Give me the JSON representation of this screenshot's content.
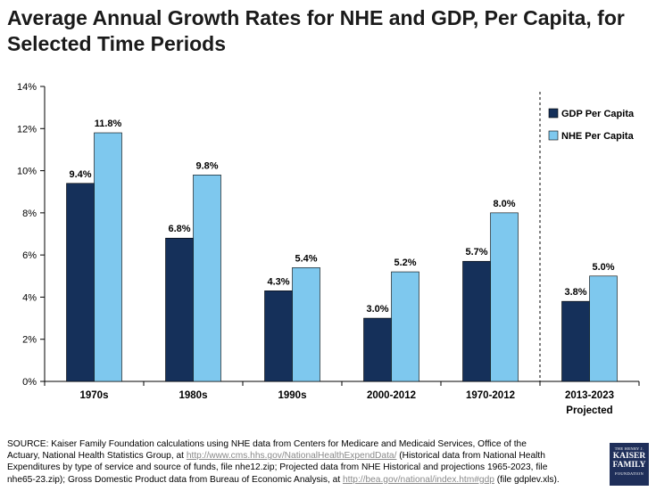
{
  "title": "Average Annual Growth Rates for NHE and GDP, Per Capita, for Selected Time Periods",
  "colors": {
    "gdp": "#15305a",
    "nhe": "#7ec8ee",
    "axis": "#000000"
  },
  "chart_data": {
    "type": "bar",
    "categories": [
      [
        "1970s"
      ],
      [
        "1980s"
      ],
      [
        "1990s"
      ],
      [
        "2000-2012"
      ],
      [
        "1970-2012"
      ],
      [
        "2013-2023",
        "Projected"
      ]
    ],
    "series": [
      {
        "name": "GDP Per Capita",
        "values": [
          9.4,
          6.8,
          4.3,
          3.0,
          5.7,
          3.8
        ],
        "labels": [
          "9.4%",
          "6.8%",
          "4.3%",
          "3.0%",
          "5.7%",
          "3.8%"
        ]
      },
      {
        "name": "NHE Per Capita",
        "values": [
          11.8,
          9.8,
          5.4,
          5.2,
          8.0,
          5.0
        ],
        "labels": [
          "11.8%",
          "9.8%",
          "5.4%",
          "5.2%",
          "8.0%",
          "5.0%"
        ]
      }
    ],
    "ylim": [
      0,
      14
    ],
    "yticks": [
      0,
      2,
      4,
      6,
      8,
      10,
      12,
      14
    ],
    "ytick_labels": [
      "0%",
      "2%",
      "4%",
      "6%",
      "8%",
      "10%",
      "12%",
      "14%"
    ],
    "legend_position": "top-right",
    "divider_before_category": 5,
    "grid": false
  },
  "source": {
    "prefix": "SOURCE: Kaiser Family Foundation calculations using NHE data from Centers for Medicare and Medicaid Services, Office of the Actuary, National Health Statistics Group, at ",
    "link1": "http://www.cms.hhs.gov/NationalHealthExpendData/",
    "middle": " (Historical data from National Health Expenditures by type of service and source of funds, file nhe12.zip; Projected data from NHE Historical and projections 1965-2023, file nhe65-23.zip); Gross Domestic Product data from Bureau of Economic Analysis, at ",
    "link2": "http://bea.gov/national/index.htm#gdp",
    "suffix": " (file gdplev.xls)."
  },
  "logo": {
    "line1": "THE HENRY J.",
    "line2": "KAISER",
    "line3": "FAMILY",
    "line4": "FOUNDATION"
  }
}
